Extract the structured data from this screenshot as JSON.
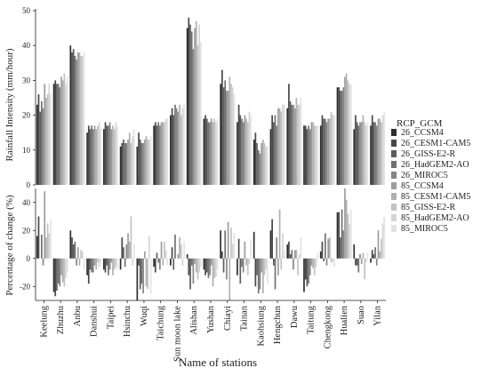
{
  "chart_data": [
    {
      "type": "bar",
      "ylabel": "Rainfall Intensity (mm/hour)",
      "ylim": [
        0,
        50
      ],
      "yticks": [
        0,
        10,
        20,
        30,
        40,
        50
      ],
      "grid": false,
      "categories": [
        "Keelung",
        "Zhuzhu",
        "Anbu",
        "Danshui",
        "Taipei",
        "Hsinchu",
        "Wuqi",
        "Taichung",
        "Sun moon lake",
        "Alishan",
        "Yushan",
        "Chiayi",
        "Tainan",
        "Kaohsiung",
        "Hengchun",
        "Dawu",
        "Taitung",
        "Chengkong",
        "Hualien",
        "Suao",
        "Yilan"
      ],
      "series": [
        {
          "name": "26_CCSM4",
          "values": [
            23,
            29,
            40,
            15,
            16,
            11,
            11,
            17,
            20,
            45,
            19,
            29,
            18,
            13,
            16,
            22,
            17,
            17,
            28,
            16,
            17
          ]
        },
        {
          "name": "26_CESM1-CAM5",
          "values": [
            26,
            30,
            38,
            17,
            18,
            12,
            15,
            18,
            22,
            48,
            20,
            33,
            23,
            15,
            20,
            29,
            17,
            20,
            28,
            20,
            20
          ]
        },
        {
          "name": "26_GISS-E2-R",
          "values": [
            21,
            29,
            39,
            16,
            17,
            13,
            13,
            17,
            20,
            46,
            19,
            28,
            20,
            12,
            18,
            24,
            16,
            19,
            27,
            18,
            18
          ]
        },
        {
          "name": "26_HadGEM2-AO",
          "values": [
            24,
            29,
            37,
            17,
            17,
            12,
            12,
            18,
            23,
            44,
            18,
            30,
            19,
            10,
            20,
            23,
            17,
            19,
            27,
            17,
            18
          ]
        },
        {
          "name": "26_MIROC5",
          "values": [
            22,
            28,
            36,
            16,
            18,
            12,
            12,
            17,
            22,
            39,
            18,
            27,
            18,
            9,
            17,
            23,
            16,
            18,
            28,
            18,
            17
          ]
        },
        {
          "name": "85_CCSM4",
          "values": [
            29,
            31,
            38,
            17,
            16,
            13,
            13,
            18,
            21,
            45,
            19,
            27,
            20,
            12,
            22,
            22,
            18,
            19,
            31,
            18,
            19
          ]
        },
        {
          "name": "85_CESM1-CAM5",
          "values": [
            25,
            30,
            38,
            16,
            17,
            15,
            14,
            18,
            23,
            47,
            18,
            31,
            19,
            13,
            22,
            25,
            18,
            19,
            32,
            20,
            19
          ]
        },
        {
          "name": "85_GISS-E2-R",
          "values": [
            26,
            32,
            37,
            17,
            16,
            12,
            13,
            18,
            20,
            40,
            19,
            29,
            18,
            12,
            21,
            23,
            17,
            21,
            30,
            18,
            18
          ]
        },
        {
          "name": "85_HadGEM2-AO",
          "values": [
            29,
            29,
            37,
            18,
            18,
            14,
            13,
            19,
            22,
            46,
            18,
            28,
            21,
            11,
            23,
            23,
            17,
            20,
            29,
            17,
            20
          ]
        },
        {
          "name": "85_MIROC5",
          "values": [
            26,
            31,
            38,
            16,
            17,
            16,
            14,
            19,
            23,
            41,
            19,
            26,
            20,
            11,
            23,
            25,
            17,
            20,
            29,
            18,
            21
          ]
        }
      ]
    },
    {
      "type": "bar",
      "ylabel": "Percentage of change (%)",
      "ylim": [
        -30,
        50
      ],
      "yticks": [
        -20,
        0,
        20,
        40
      ],
      "xlabel": "Name of stations",
      "grid": false,
      "categories": [
        "Keelung",
        "Zhuzhu",
        "Anbu",
        "Danshui",
        "Taipei",
        "Hsinchu",
        "Wuqi",
        "Taichung",
        "Sun moon lake",
        "Alishan",
        "Yushan",
        "Chiayi",
        "Tainan",
        "Kaohsiung",
        "Hengchun",
        "Dawu",
        "Taitung",
        "Chengkong",
        "Hualien",
        "Suao",
        "Yilan"
      ],
      "series": [
        {
          "name": "26_CCSM4",
          "values": [
            16,
            -24,
            20,
            -12,
            -8,
            -8,
            -30,
            -6,
            -5,
            3,
            -8,
            20,
            -12,
            19,
            20,
            10,
            -24,
            5,
            33,
            10,
            -3
          ]
        },
        {
          "name": "26_CESM1-CAM5",
          "values": [
            30,
            -27,
            15,
            -18,
            -10,
            15,
            -5,
            -10,
            8,
            -12,
            -12,
            5,
            14,
            -20,
            28,
            12,
            -15,
            12,
            33,
            -5,
            6
          ]
        },
        {
          "name": "26_GISS-E2-R",
          "values": [
            0,
            -23,
            10,
            -8,
            -5,
            8,
            -22,
            4,
            -8,
            -22,
            -10,
            -10,
            -18,
            -12,
            -5,
            3,
            -20,
            -2,
            15,
            -5,
            3
          ]
        },
        {
          "name": "26_HadGEM2-AO",
          "values": [
            17,
            -18,
            12,
            -10,
            -12,
            -6,
            -18,
            -3,
            17,
            -5,
            -14,
            20,
            -6,
            -25,
            -22,
            6,
            -18,
            18,
            35,
            -10,
            8
          ]
        },
        {
          "name": "26_MIROC5",
          "values": [
            -5,
            -20,
            -5,
            -10,
            -8,
            10,
            -25,
            -8,
            0,
            -18,
            -12,
            -15,
            -10,
            -22,
            15,
            -8,
            -12,
            -5,
            20,
            3,
            -5
          ]
        },
        {
          "name": "85_CCSM4",
          "values": [
            48,
            -12,
            8,
            -5,
            -3,
            18,
            5,
            12,
            3,
            -4,
            -5,
            26,
            12,
            -10,
            -12,
            6,
            -5,
            14,
            50,
            -4,
            20
          ]
        },
        {
          "name": "85_CESM1-CAM5",
          "values": [
            15,
            -17,
            -5,
            -8,
            -12,
            12,
            -20,
            -5,
            15,
            -10,
            -20,
            -30,
            -5,
            -25,
            35,
            6,
            -7,
            15,
            42,
            4,
            5
          ]
        },
        {
          "name": "85_GISS-E2-R",
          "values": [
            25,
            -20,
            6,
            -3,
            -8,
            30,
            -22,
            12,
            10,
            -15,
            -14,
            22,
            -12,
            -12,
            -8,
            -12,
            -12,
            -3,
            32,
            -15,
            14
          ]
        },
        {
          "name": "85_HadGEM2-AO",
          "values": [
            18,
            -14,
            5,
            -6,
            -6,
            -5,
            16,
            6,
            -5,
            -10,
            -13,
            10,
            -4,
            -8,
            18,
            3,
            -6,
            -2,
            25,
            -3,
            25
          ]
        },
        {
          "name": "85_MIROC5",
          "values": [
            28,
            -10,
            -8,
            -3,
            -7,
            10,
            -25,
            -5,
            12,
            -6,
            -8,
            18,
            14,
            -18,
            6,
            15,
            4,
            -6,
            35,
            4,
            30
          ]
        }
      ]
    }
  ],
  "legend": {
    "title": "RCP_GCM",
    "colors": [
      "#2e2e2e",
      "#474747",
      "#5e5e5e",
      "#707070",
      "#858585",
      "#9c9c9c",
      "#b0b0b0",
      "#c2c2c2",
      "#d4d4d4",
      "#e3e3e3"
    ]
  }
}
